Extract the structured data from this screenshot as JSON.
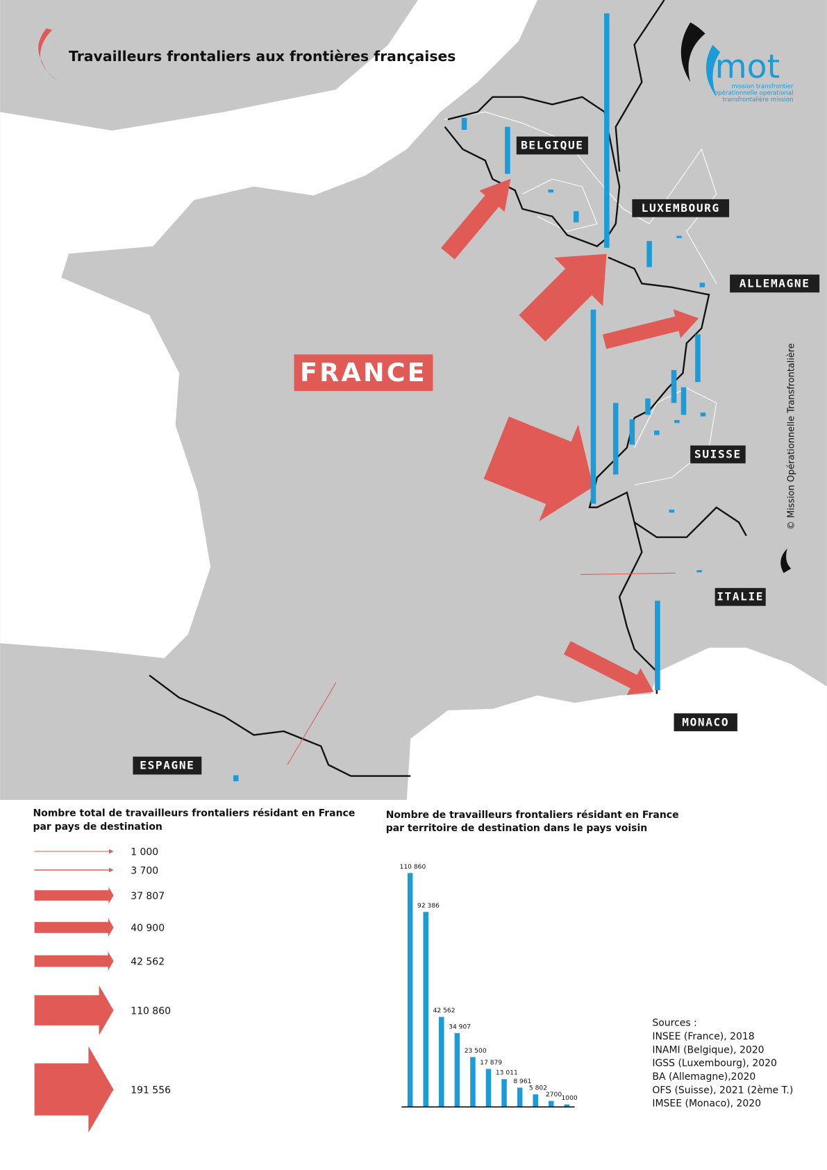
{
  "header": {
    "title": "Travailleurs frontaliers aux frontières françaises"
  },
  "logo": {
    "name": "mot",
    "lines": [
      "mission transfrontier",
      "opérationnelle operational",
      "transfrontalière mission"
    ]
  },
  "map": {
    "france": "FRANCE",
    "labels": [
      "BELGIQUE",
      "LUXEMBOURG",
      "ALLEMAGNE",
      "SUISSE",
      "ITALIE",
      "MONACO",
      "ESPAGNE"
    ]
  },
  "credit": "© Mission Opérationnelle Transfrontalière",
  "legend": {
    "title": [
      "Nombre total de travailleurs frontaliers résidant en France",
      "par pays de destination"
    ],
    "items": [
      {
        "value": 1000,
        "label": "1 000"
      },
      {
        "value": 3700,
        "label": "3 700"
      },
      {
        "value": 37807,
        "label": "37 807"
      },
      {
        "value": 40900,
        "label": "40 900"
      },
      {
        "value": 42562,
        "label": "42 562"
      },
      {
        "value": 110860,
        "label": "110 860"
      },
      {
        "value": 191556,
        "label": "191 556"
      }
    ],
    "color": "#e05a56"
  },
  "chart_data": {
    "type": "bar",
    "title": [
      "Nombre de travailleurs frontaliers résidant en France",
      "par territoire de destination dans le pays voisin"
    ],
    "values": [
      110860,
      92386,
      42562,
      34907,
      23500,
      17879,
      13011,
      8961,
      5802,
      2700,
      1000
    ],
    "value_labels": [
      "110 860",
      "92 386",
      "42 562",
      "34 907",
      "23 500",
      "17 879",
      "13 011",
      "8 961",
      "5 802",
      "2700",
      "1000"
    ],
    "color": "#1b9bd7"
  },
  "sources": {
    "title": "Sources :",
    "lines": [
      "INSEE (France), 2018",
      "INAMI (Belgique), 2020",
      "IGSS (Luxembourg), 2020",
      "BA (Allemagne),2020",
      "OFS (Suisse), 2021 (2ème T.)",
      "IMSEE (Monaco), 2020"
    ]
  }
}
